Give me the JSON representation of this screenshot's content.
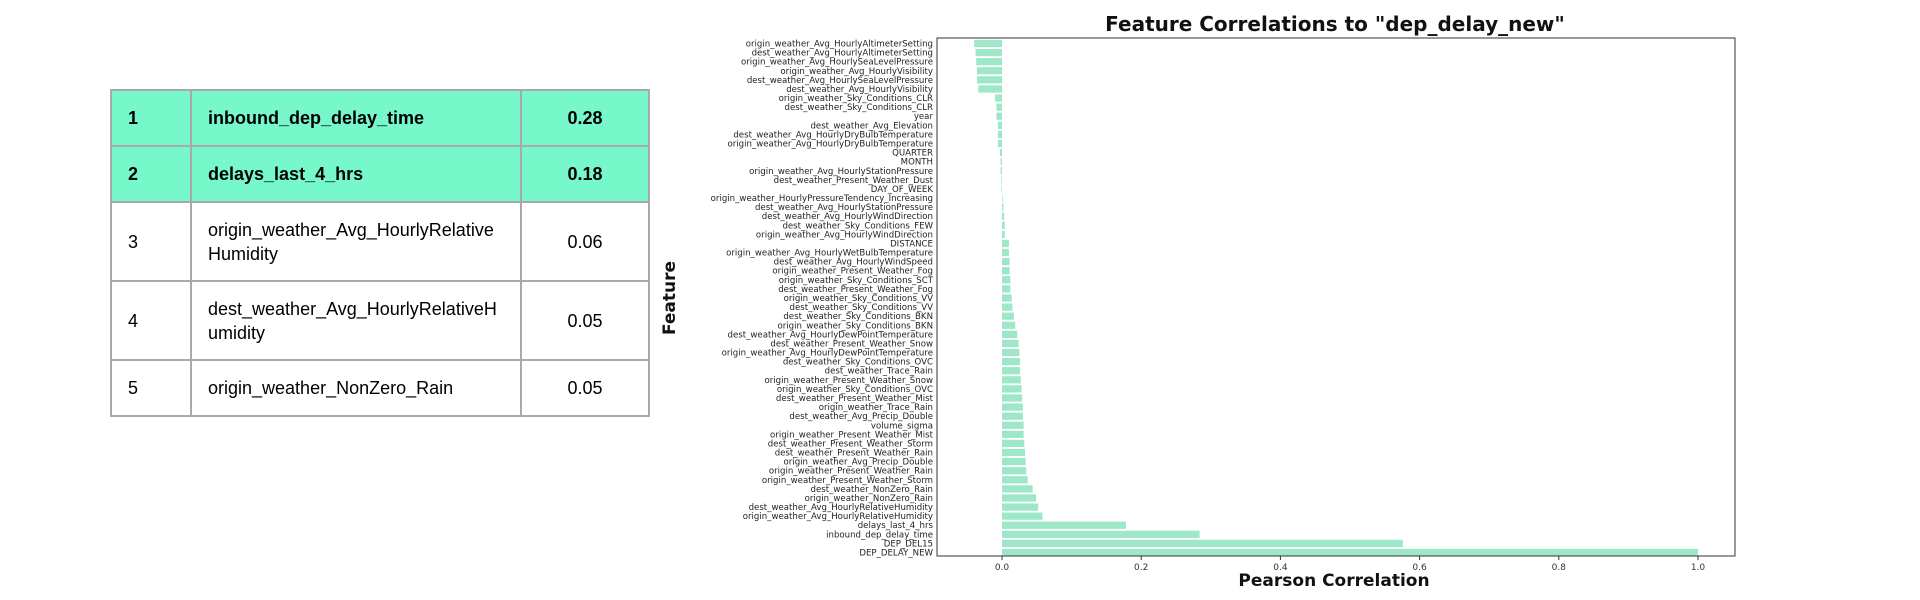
{
  "table": {
    "rows": [
      {
        "rank": "1",
        "feature": "inbound_dep_delay_time",
        "value": "0.28",
        "highlight": true
      },
      {
        "rank": "2",
        "feature": "delays_last_4_hrs",
        "value": "0.18",
        "highlight": true
      },
      {
        "rank": "3",
        "feature": "origin_weather_Avg_HourlyRelativeHumidity",
        "value": "0.06",
        "highlight": false
      },
      {
        "rank": "4",
        "feature": "dest_weather_Avg_HourlyRelativeHumidity",
        "value": "0.05",
        "highlight": false
      },
      {
        "rank": "5",
        "feature": "origin_weather_NonZero_Rain",
        "value": "0.05",
        "highlight": false
      }
    ],
    "highlight_color": "#77f8cb"
  },
  "chart_data": {
    "type": "bar",
    "orientation": "horizontal",
    "title": "Feature Correlations to \"dep_delay_new\"",
    "xlabel": "Pearson Correlation",
    "ylabel": "Feature",
    "xlim": [
      -0.09,
      1.05
    ],
    "xticks": [
      "0.0",
      "0.2",
      "0.4",
      "0.6",
      "0.8",
      "1.0"
    ],
    "bar_color": "#9ee8c9",
    "grid": false,
    "categories": [
      "origin_weather_Avg_HourlyAltimeterSetting",
      "dest_weather_Avg_HourlyAltimeterSetting",
      "origin_weather_Avg_HourlySeaLevelPressure",
      "origin_weather_Avg_HourlyVisibility",
      "dest_weather_Avg_HourlySeaLevelPressure",
      "dest_weather_Avg_HourlyVisibility",
      "origin_weather_Sky_Conditions_CLR",
      "dest_weather_Sky_Conditions_CLR",
      "year",
      "dest_weather_Avg_Elevation",
      "dest_weather_Avg_HourlyDryBulbTemperature",
      "origin_weather_Avg_HourlyDryBulbTemperature",
      "QUARTER",
      "MONTH",
      "origin_weather_Avg_HourlyStationPressure",
      "dest_weather_Present_Weather_Dust",
      "DAY_OF_WEEK",
      "origin_weather_HourlyPressureTendency_Increasing",
      "dest_weather_Avg_HourlyStationPressure",
      "dest_weather_Avg_HourlyWindDirection",
      "dest_weather_Sky_Conditions_FEW",
      "origin_weather_Avg_HourlyWindDirection",
      "DISTANCE",
      "origin_weather_Avg_HourlyWetBulbTemperature",
      "dest_weather_Avg_HourlyWindSpeed",
      "origin_weather_Present_Weather_Fog",
      "origin_weather_Sky_Conditions_SCT",
      "dest_weather_Present_Weather_Fog",
      "origin_weather_Sky_Conditions_VV",
      "dest_weather_Sky_Conditions_VV",
      "dest_weather_Sky_Conditions_BKN",
      "origin_weather_Sky_Conditions_BKN",
      "dest_weather_Avg_HourlyDewPointTemperature",
      "dest_weather_Present_Weather_Snow",
      "origin_weather_Avg_HourlyDewPointTemperature",
      "dest_weather_Sky_Conditions_OVC",
      "dest_weather_Trace_Rain",
      "origin_weather_Present_Weather_Snow",
      "origin_weather_Sky_Conditions_OVC",
      "dest_weather_Present_Weather_Mist",
      "origin_weather_Trace_Rain",
      "dest_weather_Avg_Precip_Double",
      "volume_sigma",
      "origin_weather_Present_Weather_Mist",
      "dest_weather_Present_Weather_Storm",
      "dest_weather_Present_Weather_Rain",
      "origin_weather_Avg_Precip_Double",
      "origin_weather_Present_Weather_Rain",
      "origin_weather_Present_Weather_Storm",
      "dest_weather_NonZero_Rain",
      "origin_weather_NonZero_Rain",
      "dest_weather_Avg_HourlyRelativeHumidity",
      "origin_weather_Avg_HourlyRelativeHumidity",
      "delays_last_4_hrs",
      "inbound_dep_delay_time",
      "DEP_DEL15",
      "DEP_DELAY_NEW"
    ],
    "values": [
      -0.04,
      -0.038,
      -0.037,
      -0.036,
      -0.036,
      -0.034,
      -0.01,
      -0.008,
      -0.008,
      -0.006,
      -0.006,
      -0.006,
      -0.003,
      -0.002,
      -0.002,
      -0.001,
      -0.001,
      0.001,
      0.002,
      0.003,
      0.004,
      0.004,
      0.01,
      0.01,
      0.011,
      0.011,
      0.012,
      0.012,
      0.014,
      0.015,
      0.017,
      0.019,
      0.022,
      0.024,
      0.025,
      0.026,
      0.026,
      0.027,
      0.028,
      0.029,
      0.03,
      0.03,
      0.031,
      0.031,
      0.032,
      0.033,
      0.034,
      0.035,
      0.037,
      0.044,
      0.049,
      0.052,
      0.058,
      0.178,
      0.284,
      0.576,
      1.0
    ]
  }
}
